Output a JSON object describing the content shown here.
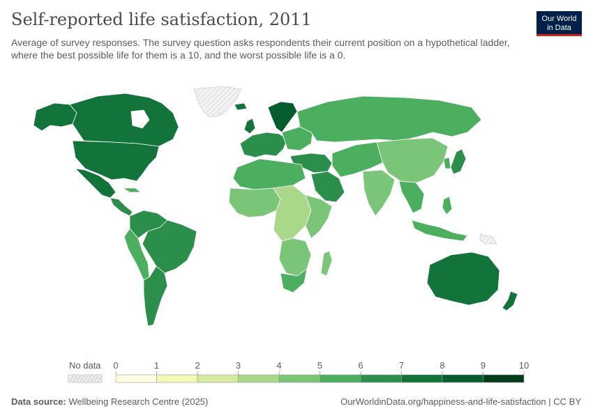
{
  "title": "Self-reported life satisfaction, 2011",
  "subtitle": "Average of survey responses. The survey question asks respondents their current position on a hypothetical ladder, where the best possible life for them is a 10, and the worst possible life is a 0.",
  "logo": {
    "line1": "Our World",
    "line2": "in Data"
  },
  "legend": {
    "no_data_label": "No data",
    "ticks": [
      "0",
      "1",
      "2",
      "3",
      "4",
      "5",
      "6",
      "7",
      "8",
      "9",
      "10"
    ],
    "bin_colors": [
      "#fdfde4",
      "#f2f7b3",
      "#d5eaa0",
      "#a9d88b",
      "#7bc578",
      "#4caf5f",
      "#2b8f4b",
      "#12743a",
      "#055c2c",
      "#003d1d"
    ]
  },
  "footer": {
    "source_label": "Data source:",
    "source_text": "Wellbeing Research Centre (2025)",
    "right_text": "OurWorldinData.org/happiness-and-life-satisfaction | CC BY"
  },
  "chart_data": {
    "type": "choropleth",
    "year": 2011,
    "scale": {
      "min": 0,
      "max": 10,
      "step": 1
    },
    "regions": [
      {
        "name": "Canada",
        "bin": "7-8"
      },
      {
        "name": "United States",
        "bin": "7-8"
      },
      {
        "name": "Mexico",
        "bin": "7-8"
      },
      {
        "name": "Central America",
        "bin": "6-7"
      },
      {
        "name": "Brazil",
        "bin": "6-7"
      },
      {
        "name": "Argentina",
        "bin": "6-7"
      },
      {
        "name": "Western South America",
        "bin": "5-6"
      },
      {
        "name": "Greenland",
        "bin": "no data"
      },
      {
        "name": "Northern Europe",
        "bin": "7-8"
      },
      {
        "name": "Western Europe",
        "bin": "6-7"
      },
      {
        "name": "Russia",
        "bin": "5-6"
      },
      {
        "name": "Middle East",
        "bin": "6-7"
      },
      {
        "name": "Saudi Arabia",
        "bin": "6-7"
      },
      {
        "name": "North Africa",
        "bin": "5-6"
      },
      {
        "name": "West Africa",
        "bin": "4-5"
      },
      {
        "name": "Central Africa",
        "bin": "3-4"
      },
      {
        "name": "East Africa",
        "bin": "3-4"
      },
      {
        "name": "Southern Africa",
        "bin": "4-5"
      },
      {
        "name": "South Africa",
        "bin": "5-6"
      },
      {
        "name": "Madagascar",
        "bin": "4-5"
      },
      {
        "name": "Central Asia",
        "bin": "5-6"
      },
      {
        "name": "China",
        "bin": "4-5"
      },
      {
        "name": "India",
        "bin": "4-5"
      },
      {
        "name": "Southeast Asia",
        "bin": "5-6"
      },
      {
        "name": "Japan",
        "bin": "6-7"
      },
      {
        "name": "Indonesia",
        "bin": "5-6"
      },
      {
        "name": "Australia",
        "bin": "7-8"
      },
      {
        "name": "New Zealand",
        "bin": "7-8"
      }
    ]
  }
}
